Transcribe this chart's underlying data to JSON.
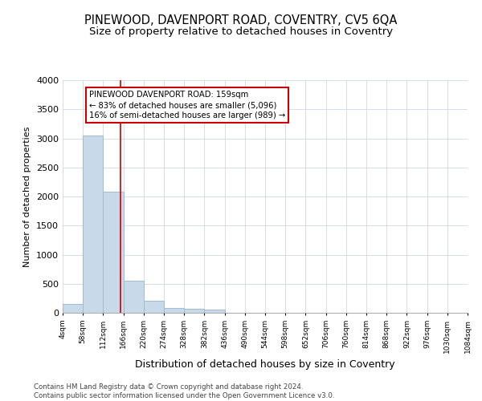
{
  "title": "PINEWOOD, DAVENPORT ROAD, COVENTRY, CV5 6QA",
  "subtitle": "Size of property relative to detached houses in Coventry",
  "xlabel": "Distribution of detached houses by size in Coventry",
  "ylabel": "Number of detached properties",
  "footer_line1": "Contains HM Land Registry data © Crown copyright and database right 2024.",
  "footer_line2": "Contains public sector information licensed under the Open Government Licence v3.0.",
  "bin_edges": [
    4,
    58,
    112,
    166,
    220,
    274,
    328,
    382,
    436,
    490,
    544,
    598,
    652,
    706,
    760,
    814,
    868,
    922,
    976,
    1030,
    1084
  ],
  "bin_labels": [
    "4sqm",
    "58sqm",
    "112sqm",
    "166sqm",
    "220sqm",
    "274sqm",
    "328sqm",
    "382sqm",
    "436sqm",
    "490sqm",
    "544sqm",
    "598sqm",
    "652sqm",
    "706sqm",
    "760sqm",
    "814sqm",
    "868sqm",
    "922sqm",
    "976sqm",
    "1030sqm",
    "1084sqm"
  ],
  "bar_heights": [
    155,
    3050,
    2080,
    550,
    210,
    80,
    75,
    50,
    0,
    0,
    0,
    0,
    0,
    0,
    0,
    0,
    0,
    0,
    0,
    0
  ],
  "bar_color": "#c8d9ea",
  "bar_edge_color": "#a0bcd0",
  "property_size": 159,
  "property_line_color": "#cc0000",
  "annotation_text": "PINEWOOD DAVENPORT ROAD: 159sqm\n← 83% of detached houses are smaller (5,096)\n16% of semi-detached houses are larger (989) →",
  "annotation_box_color": "#ffffff",
  "annotation_box_edge_color": "#cc0000",
  "ylim": [
    0,
    4000
  ],
  "yticks": [
    0,
    500,
    1000,
    1500,
    2000,
    2500,
    3000,
    3500,
    4000
  ],
  "background_color": "#ffffff",
  "plot_background_color": "#ffffff",
  "grid_color": "#d0d8e0",
  "title_fontsize": 10.5,
  "subtitle_fontsize": 9.5
}
